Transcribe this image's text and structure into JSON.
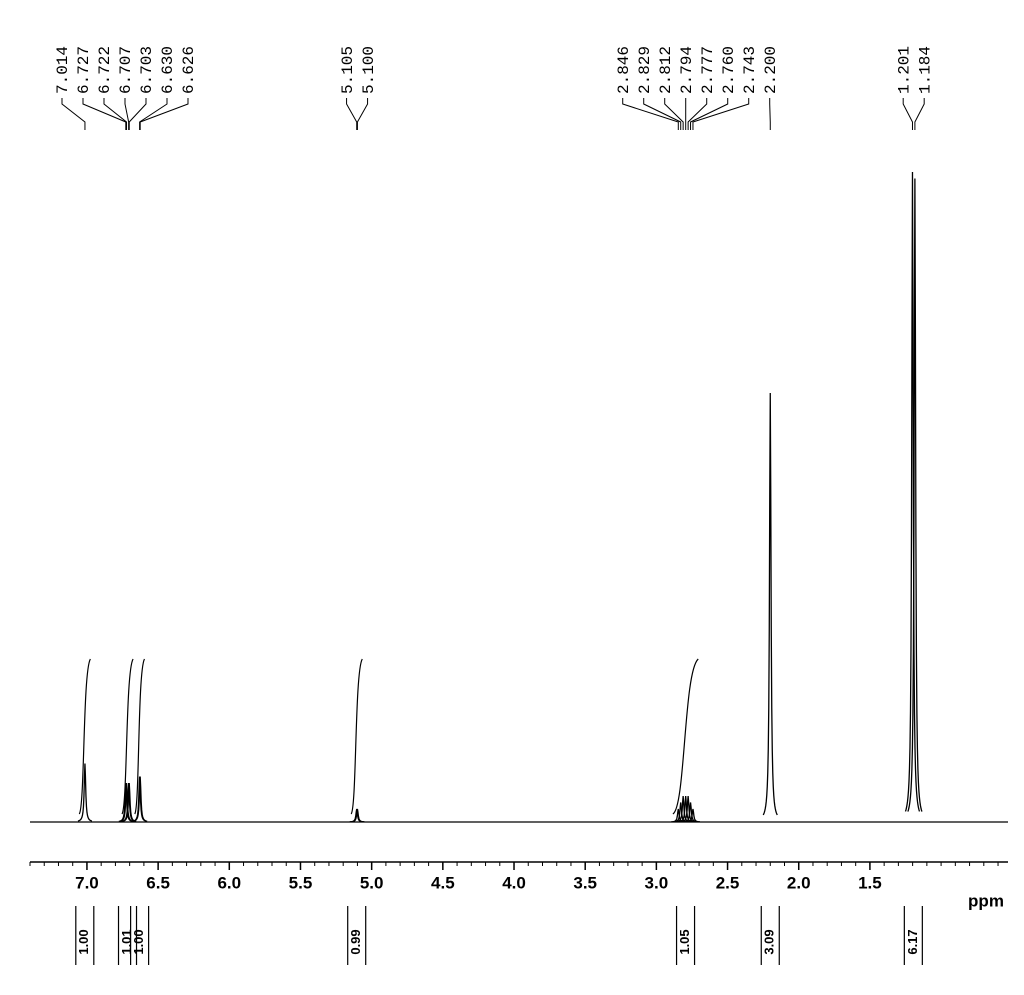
{
  "chart_data": {
    "type": "spectrum",
    "x_label": "ppm",
    "xlim": [
      7.4,
      0.53
    ],
    "xticks": [
      {
        "value": 7,
        "label": "7.0"
      },
      6.5,
      {
        "value": 6,
        "label": "6.0"
      },
      5.5,
      {
        "value": 5,
        "label": "5.0"
      },
      4.5,
      {
        "value": 4,
        "label": "4.0"
      },
      3.5,
      {
        "value": 3,
        "label": "3.0"
      },
      2.5,
      {
        "value": 2,
        "label": "2.0"
      },
      1.5
    ],
    "minor_tick_step": 0.1,
    "ylim": [
      0,
      100
    ],
    "color": "#000000",
    "peaks": {
      "x": [
        7.014,
        6.727,
        6.722,
        6.707,
        6.703,
        6.63,
        6.626,
        5.105,
        5.1,
        2.846,
        2.829,
        2.812,
        2.794,
        2.777,
        2.76,
        2.743,
        2.2,
        1.201,
        1.184
      ],
      "x_labels": [
        "7.014",
        "6.727",
        "6.722",
        "6.707",
        "6.703",
        "6.630",
        "6.626",
        "5.105",
        "5.100",
        "2.846",
        "2.829",
        "2.812",
        "2.794",
        "2.777",
        "2.760",
        "2.743",
        "2.200",
        "1.201",
        "1.184"
      ],
      "values": [
        9,
        6,
        6,
        6,
        6,
        7,
        7,
        2,
        2,
        2,
        3,
        4,
        4,
        4,
        3,
        2,
        66,
        100,
        99
      ]
    },
    "integrals": [
      {
        "from": 7.04,
        "to": 6.99,
        "value": 1,
        "label": "1.00",
        "curve": true
      },
      {
        "from": 6.74,
        "to": 6.69,
        "value": 1.01,
        "label": "1.01",
        "curve": true
      },
      {
        "from": 6.65,
        "to": 6.61,
        "value": 1,
        "label": "1.00",
        "curve": true
      },
      {
        "from": 5.13,
        "to": 5.08,
        "value": 0.99,
        "label": "0.99",
        "curve": true
      },
      {
        "from": 2.87,
        "to": 2.72,
        "value": 1.05,
        "label": "1.05",
        "curve": true
      },
      {
        "from": 2.23,
        "to": 2.17,
        "value": 3.09,
        "label": "3.09",
        "curve": false
      },
      {
        "from": 1.23,
        "to": 1.16,
        "value": 6.17,
        "label": "6.17",
        "curve": false
      }
    ]
  }
}
